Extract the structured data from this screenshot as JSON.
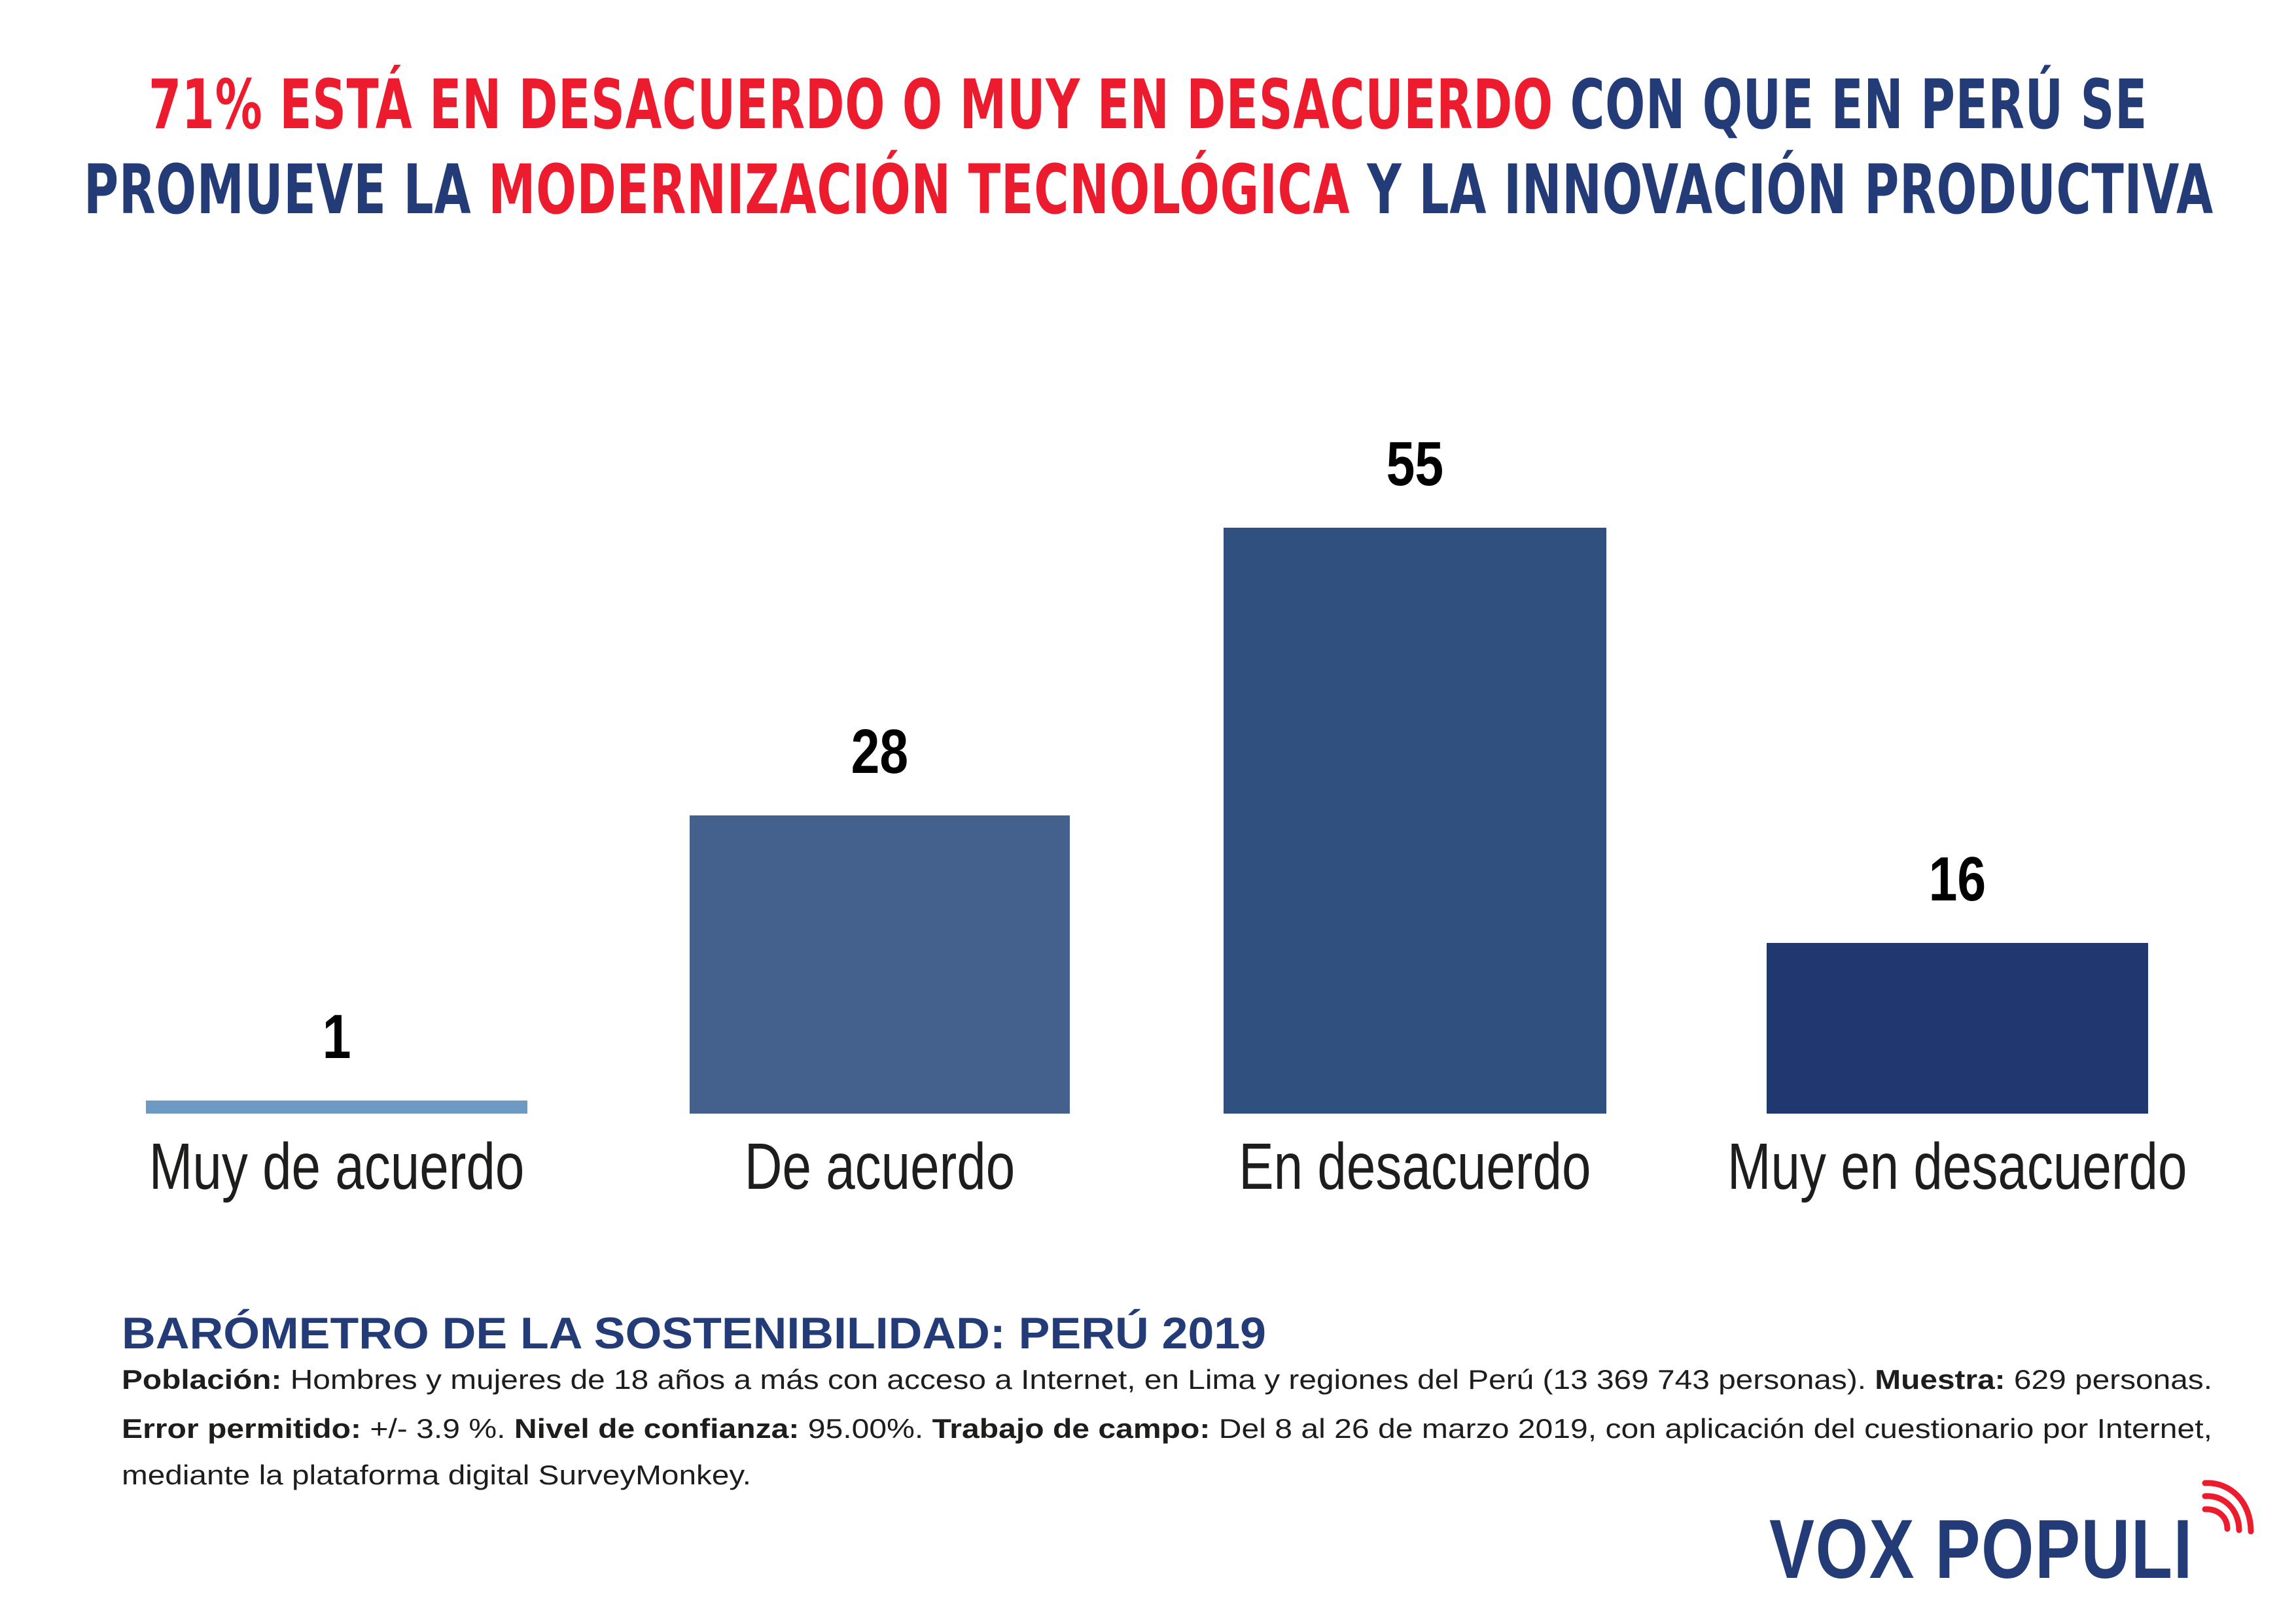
{
  "title": {
    "line1": [
      {
        "text": "71% ESTÁ EN DESACUERDO O MUY EN DESACUERDO",
        "color": "red"
      },
      {
        "text": " CON QUE EN PERÚ SE",
        "color": "navy"
      }
    ],
    "line2": [
      {
        "text": "PROMUEVE LA ",
        "color": "navy"
      },
      {
        "text": "MODERNIZACIÓN TECNOLÓGICA",
        "color": "red"
      },
      {
        "text": " Y LA INNOVACIÓN PRODUCTIVA",
        "color": "navy"
      }
    ]
  },
  "colors": {
    "red": "#EC1C2E",
    "navy": "#233C78",
    "bars": [
      "#6C9AC3",
      "#43618C",
      "#30507F",
      "#20376F"
    ]
  },
  "chart_data": {
    "type": "bar",
    "title": "71% ESTÁ EN DESACUERDO O MUY EN DESACUERDO CON QUE EN PERÚ SE PROMUEVE LA MODERNIZACIÓN TECNOLÓGICA Y LA INNOVACIÓN PRODUCTIVA",
    "categories": [
      "Muy de acuerdo",
      "De acuerdo",
      "En desacuerdo",
      "Muy en desacuerdo"
    ],
    "values": [
      1,
      28,
      55,
      16
    ],
    "value_labels": [
      "1",
      "28",
      "55",
      "16"
    ],
    "xlabel": "",
    "ylabel": "",
    "ylim": [
      0,
      55
    ],
    "grid": false,
    "legend": "none",
    "axis_visible": false
  },
  "footer": {
    "heading": "BARÓMETRO DE LA SOSTENIBILIDAD: PERÚ 2019",
    "lines": [
      [
        {
          "text": "Población:",
          "bold": true
        },
        {
          "text": " Hombres y mujeres de 18 años a más con acceso a Internet, en Lima y regiones del Perú (13 369 743 personas). ",
          "bold": false
        },
        {
          "text": "Muestra:",
          "bold": true
        },
        {
          "text": " 629 personas.",
          "bold": false
        }
      ],
      [
        {
          "text": "Error permitido:",
          "bold": true
        },
        {
          "text": " +/- 3.9 %. ",
          "bold": false
        },
        {
          "text": "Nivel de confianza:",
          "bold": true
        },
        {
          "text": " 95.00%. ",
          "bold": false
        },
        {
          "text": "Trabajo de campo:",
          "bold": true
        },
        {
          "text": " Del 8 al 26 de marzo 2019, con aplicación del cuestionario por Internet,",
          "bold": false
        }
      ],
      [
        {
          "text": "mediante la plataforma digital SurveyMonkey.",
          "bold": false
        }
      ]
    ]
  },
  "logo": {
    "text": "VOX POPULI",
    "icon": "signal-waves-icon"
  }
}
